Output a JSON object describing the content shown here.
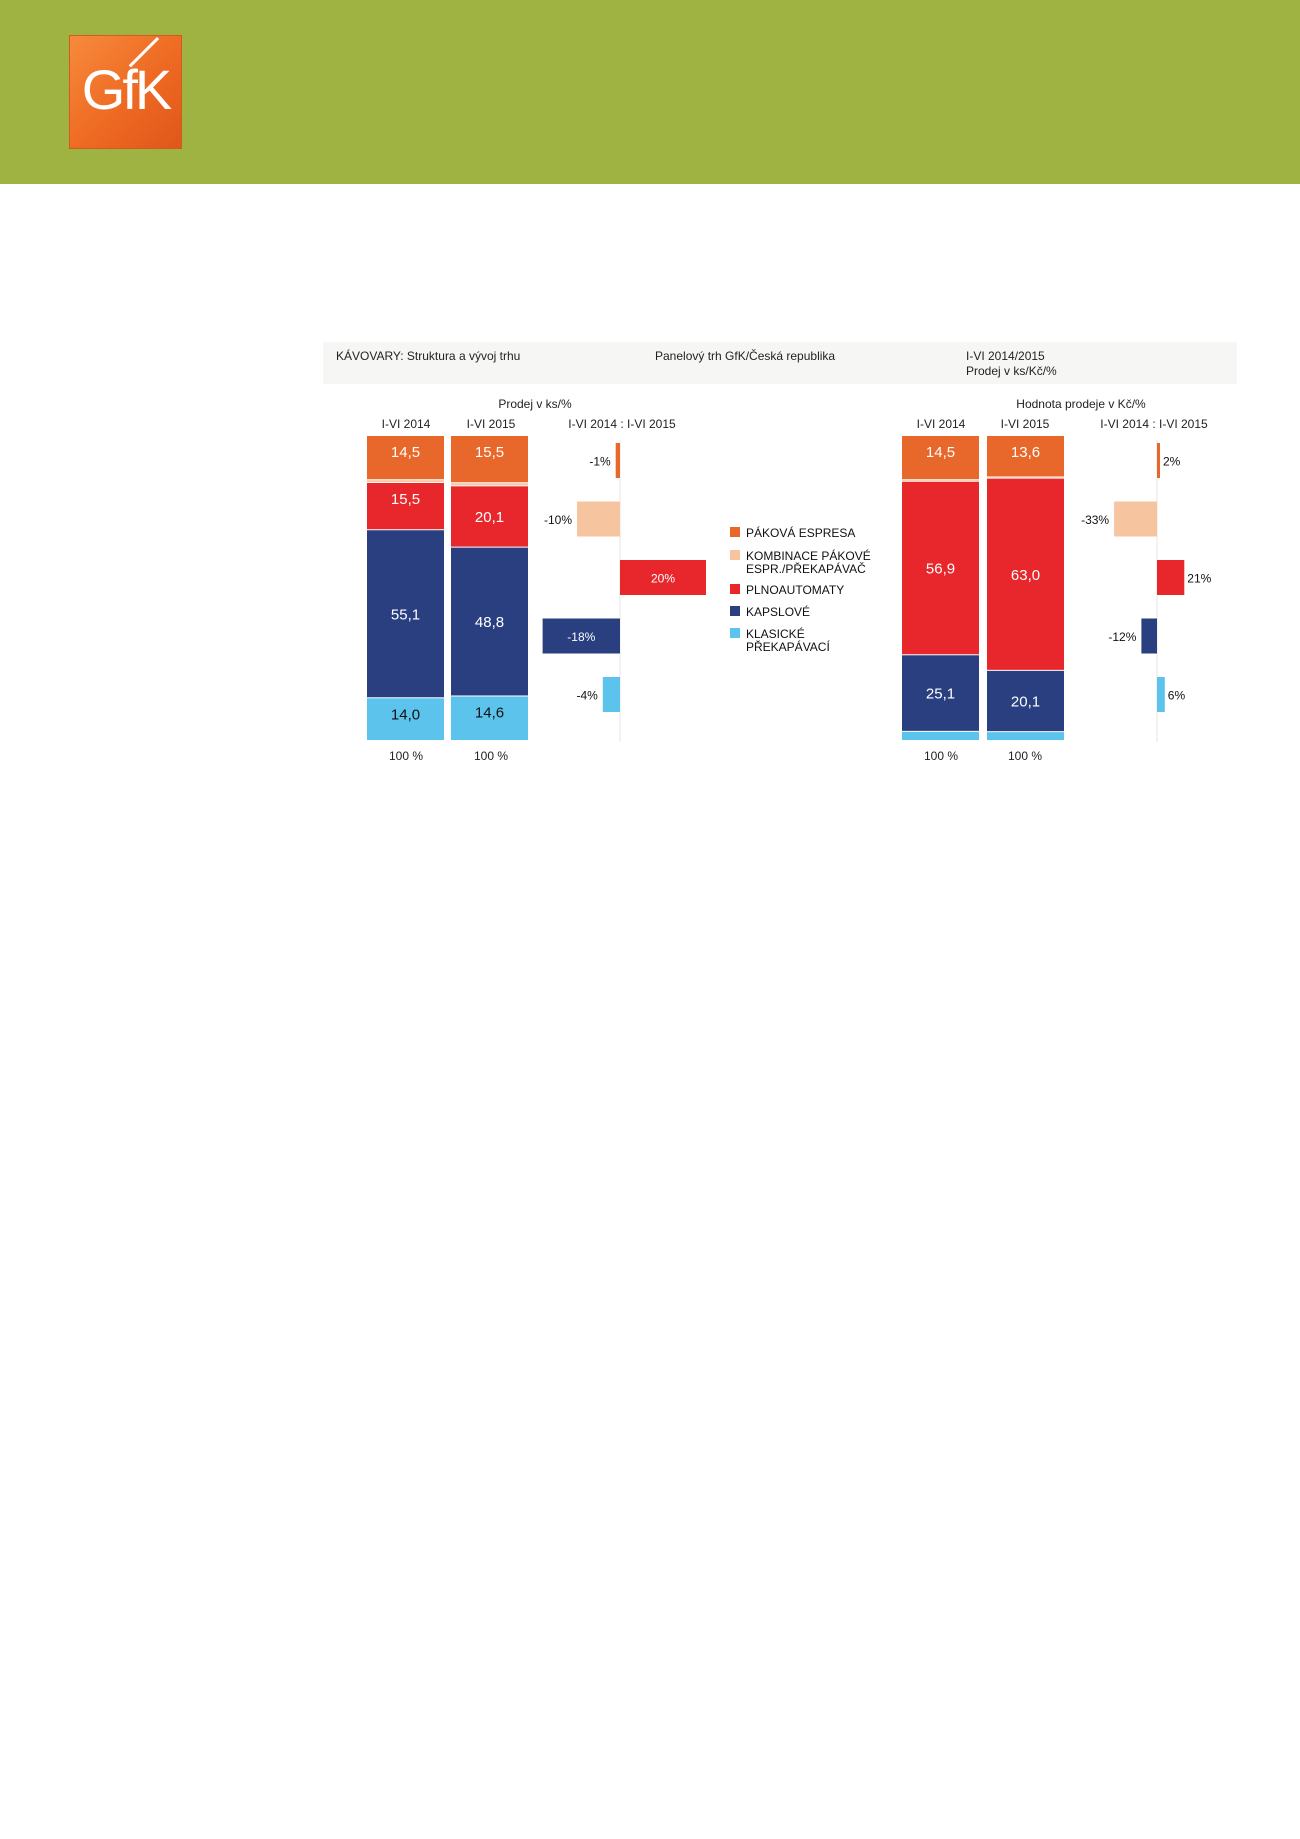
{
  "header": {
    "logo_text": "GfK",
    "band_color": "#9eb342",
    "logo_color": "#ee6a23"
  },
  "chart_header": {
    "left": "KÁVOVARY: Struktura a vývoj trhu",
    "middle": "Panelový trh GfK/Česká republika",
    "right_line1": "I-VI 2014/2015",
    "right_line2": "Prodej v ks/Kč/%"
  },
  "chart_data": [
    {
      "type": "bar",
      "stacked": true,
      "title": "Prodej v ks/%",
      "categories": [
        "I-VI 2014",
        "I-VI 2015"
      ],
      "total_labels": [
        "100 %",
        "100 %"
      ],
      "series": [
        {
          "name": "PÁKOVÁ ESPRESA",
          "values": [
            14.5,
            15.5
          ],
          "labels": [
            "14,5",
            "15,5"
          ]
        },
        {
          "name": "KOMBINACE PÁKOVÉ ESPR./PŘEKAPÁVAČ",
          "values": [
            0.9,
            1.0
          ],
          "labels": [
            "",
            ""
          ]
        },
        {
          "name": "PLNOAUTOMATY",
          "values": [
            15.5,
            20.1
          ],
          "labels": [
            "15,5",
            "20,1"
          ]
        },
        {
          "name": "KAPSLOVÉ",
          "values": [
            55.1,
            48.8
          ],
          "labels": [
            "55,1",
            "48,8"
          ]
        },
        {
          "name": "KLASICKÉ PŘEKAPÁVACÍ",
          "values": [
            14.0,
            14.6
          ],
          "labels": [
            "14,0",
            "14,6"
          ]
        }
      ],
      "change": {
        "title": "I-VI 2014 : I-VI 2015",
        "values": [
          -1,
          -10,
          20,
          -18,
          -4
        ],
        "labels": [
          "-1%",
          "-10%",
          "20%",
          "-18%",
          "-4%"
        ]
      }
    },
    {
      "type": "bar",
      "stacked": true,
      "title": "Hodnota prodeje v Kč/%",
      "categories": [
        "I-VI 2014",
        "I-VI 2015"
      ],
      "total_labels": [
        "100 %",
        "100 %"
      ],
      "series": [
        {
          "name": "PÁKOVÁ ESPRESA",
          "values": [
            14.5,
            13.6
          ],
          "labels": [
            "14,5",
            "13,6"
          ]
        },
        {
          "name": "KOMBINACE PÁKOVÉ ESPR./PŘEKAPÁVAČ",
          "values": [
            0.5,
            0.4
          ],
          "labels": [
            "",
            ""
          ]
        },
        {
          "name": "PLNOAUTOMATY",
          "values": [
            56.9,
            63.0
          ],
          "labels": [
            "56,9",
            "63,0"
          ]
        },
        {
          "name": "KAPSLOVÉ",
          "values": [
            25.1,
            20.1
          ],
          "labels": [
            "25,1",
            "20,1"
          ]
        },
        {
          "name": "KLASICKÉ PŘEKAPÁVACÍ",
          "values": [
            3.0,
            2.9
          ],
          "labels": [
            "",
            ""
          ]
        }
      ],
      "change": {
        "title": "I-VI 2014 : I-VI 2015",
        "values": [
          2,
          -33,
          21,
          -12,
          6
        ],
        "labels": [
          "2%",
          "-33%",
          "21%",
          "-12%",
          "6%"
        ]
      }
    }
  ],
  "legend": {
    "placement": "center",
    "items": [
      {
        "line1": "PÁKOVÁ ESPRESA",
        "line2": "",
        "color": "#e8672a"
      },
      {
        "line1": "KOMBINACE PÁKOVÉ",
        "line2": "ESPR./PŘEKAPÁVAČ",
        "color": "#f7c4a0"
      },
      {
        "line1": "PLNOAUTOMATY",
        "line2": "",
        "color": "#e8272d"
      },
      {
        "line1": "KAPSLOVÉ",
        "line2": "",
        "color": "#293f7f"
      },
      {
        "line1": "KLASICKÉ",
        "line2": "PŘEKAPÁVACÍ",
        "color": "#5bc3ec"
      }
    ]
  }
}
